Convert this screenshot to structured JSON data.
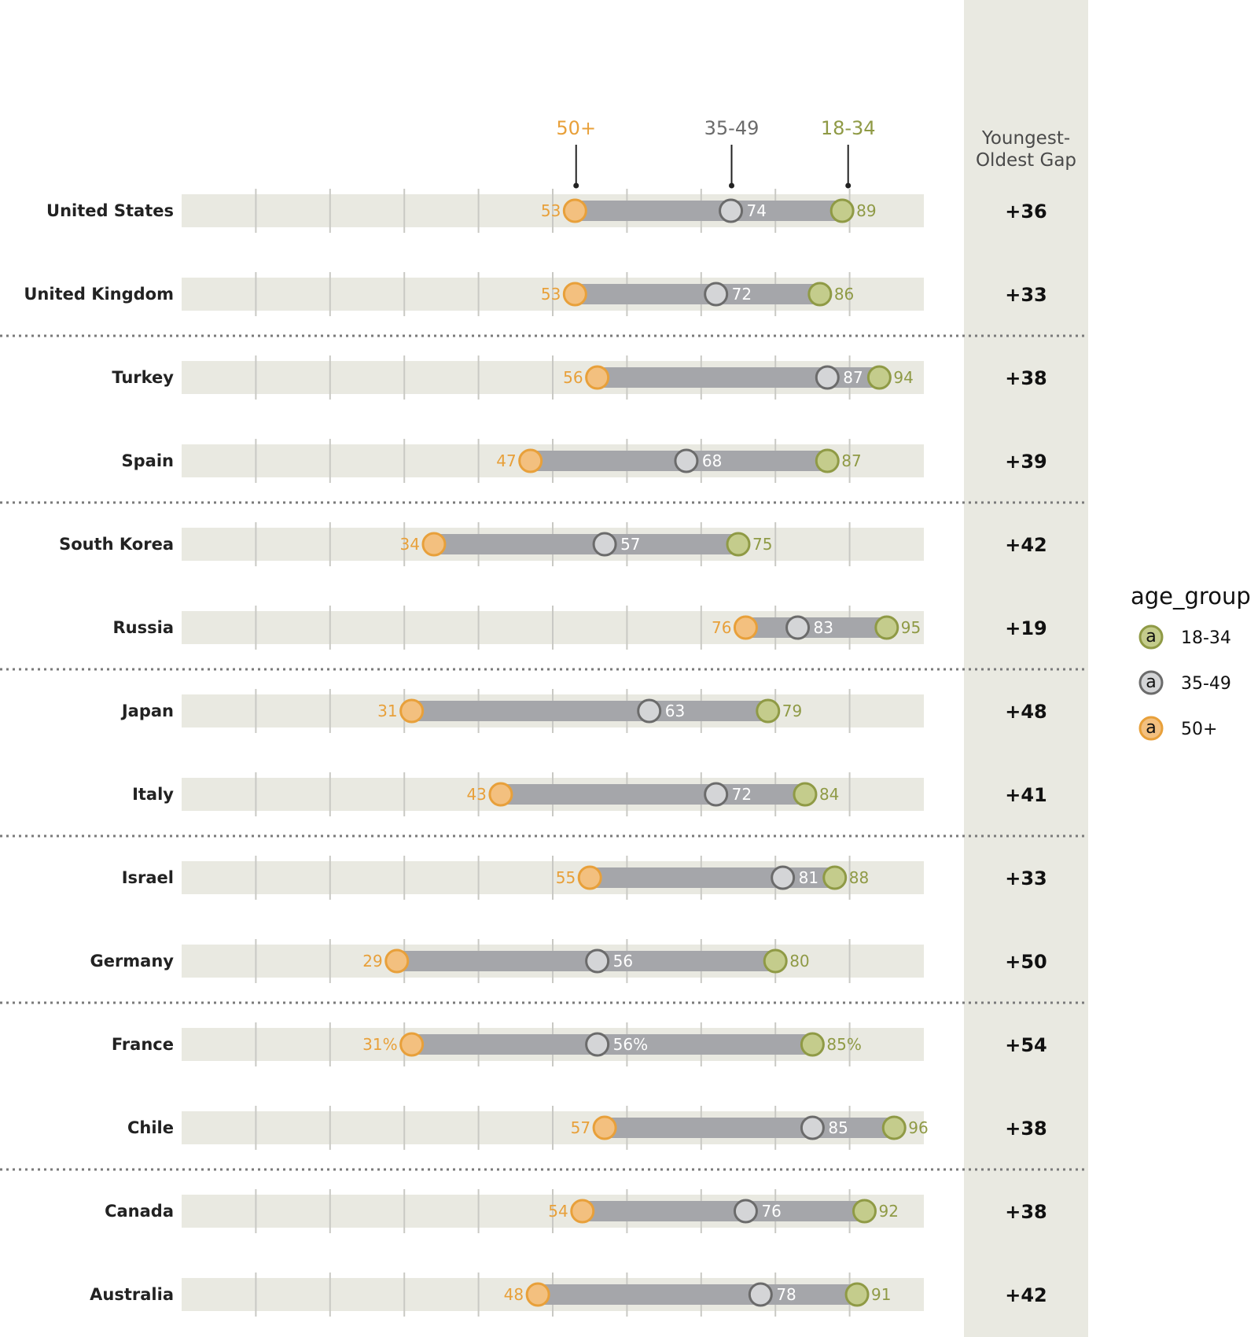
{
  "chart_data": {
    "type": "dot_range",
    "x_range": [
      0,
      100
    ],
    "grid": true,
    "legend_placement": "right",
    "gap_header": [
      "Youngest-",
      "Oldest Gap"
    ],
    "series": [
      {
        "key": "young",
        "name": "18-34",
        "color": "#8f9a45",
        "fill": "#c4cc8c"
      },
      {
        "key": "mid",
        "name": "35-49",
        "color": "#6b6b6b",
        "fill": "#d4d5d7"
      },
      {
        "key": "old",
        "name": "50+",
        "color": "#e8a03a",
        "fill": "#f3c07f"
      }
    ],
    "legend": {
      "title": "age_group",
      "marker_letter": "a"
    },
    "rows": [
      {
        "country": "United States",
        "old": 53,
        "mid": 74,
        "young": 89,
        "gap": "+36"
      },
      {
        "country": "United Kingdom",
        "old": 53,
        "mid": 72,
        "young": 86,
        "gap": "+33"
      },
      {
        "country": "Turkey",
        "old": 56,
        "mid": 87,
        "young": 94,
        "gap": "+38"
      },
      {
        "country": "Spain",
        "old": 47,
        "mid": 68,
        "young": 87,
        "gap": "+39"
      },
      {
        "country": "South Korea",
        "old": 34,
        "mid": 57,
        "young": 75,
        "gap": "+42"
      },
      {
        "country": "Russia",
        "old": 76,
        "mid": 83,
        "young": 95,
        "gap": "+19"
      },
      {
        "country": "Japan",
        "old": 31,
        "mid": 63,
        "young": 79,
        "gap": "+48"
      },
      {
        "country": "Italy",
        "old": 43,
        "mid": 72,
        "young": 84,
        "gap": "+41"
      },
      {
        "country": "Israel",
        "old": 55,
        "mid": 81,
        "young": 88,
        "gap": "+33"
      },
      {
        "country": "Germany",
        "old": 29,
        "mid": 56,
        "young": 80,
        "gap": "+50"
      },
      {
        "country": "France",
        "old": 31,
        "mid": 56,
        "young": 85,
        "gap": "+54",
        "pct": true
      },
      {
        "country": "Chile",
        "old": 57,
        "mid": 85,
        "young": 96,
        "gap": "+38"
      },
      {
        "country": "Canada",
        "old": 54,
        "mid": 76,
        "young": 92,
        "gap": "+38"
      },
      {
        "country": "Australia",
        "old": 48,
        "mid": 78,
        "young": 91,
        "gap": "+42"
      }
    ]
  }
}
